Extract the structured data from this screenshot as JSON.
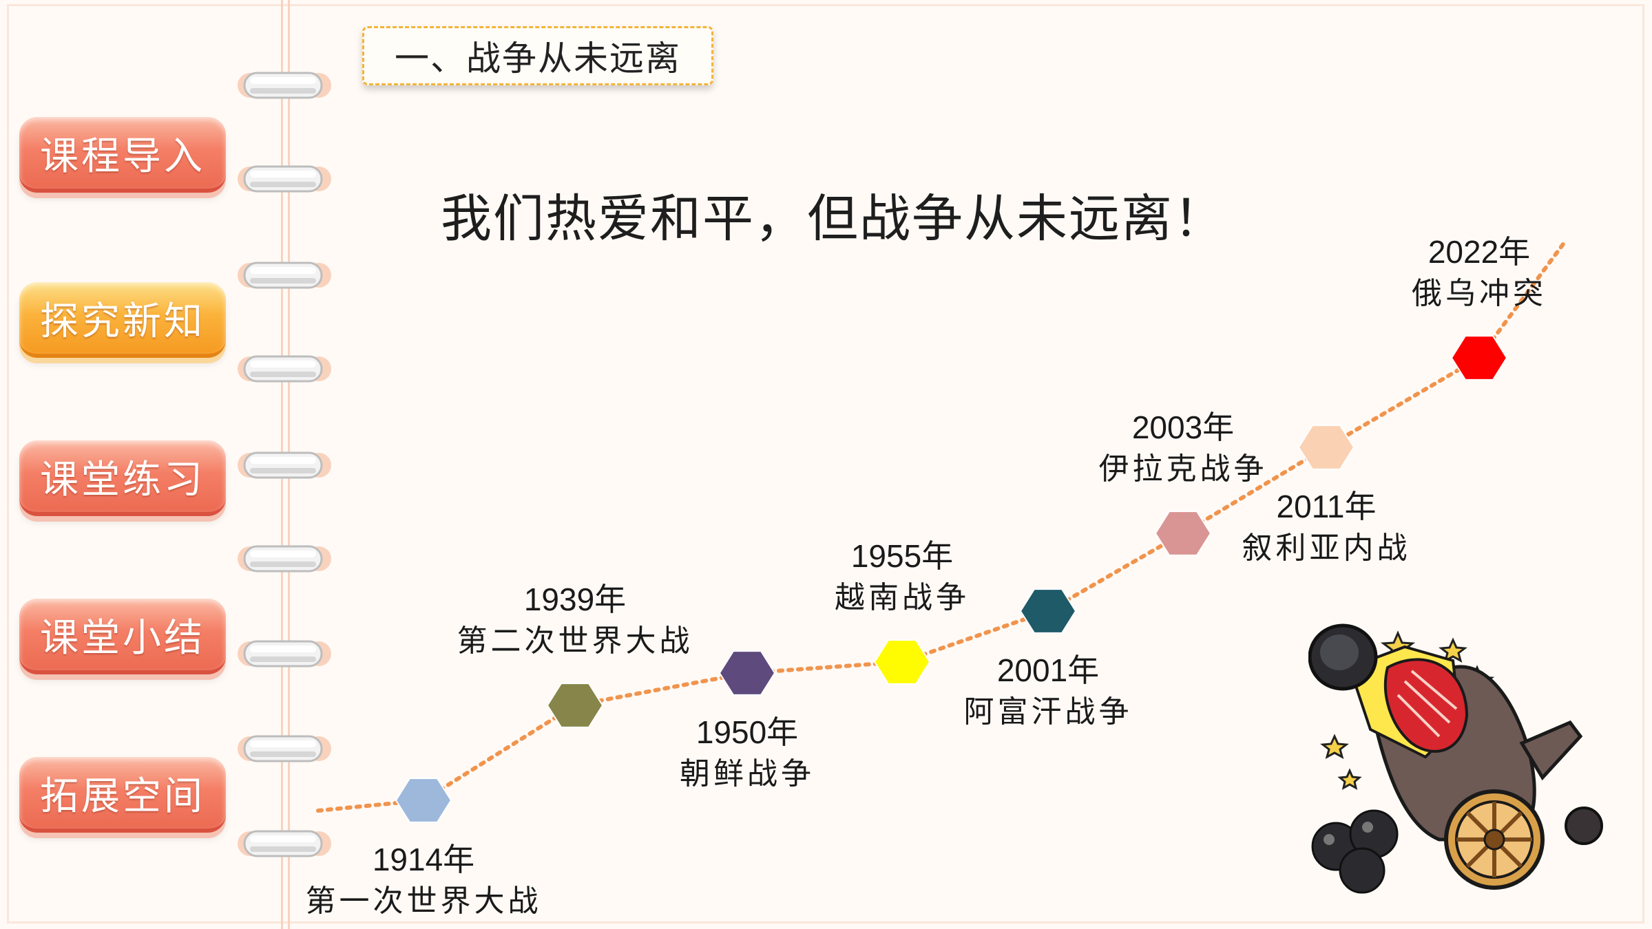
{
  "nav": {
    "items": [
      {
        "label": "课程导入",
        "style": "red"
      },
      {
        "label": "探究新知",
        "style": "orange"
      },
      {
        "label": "课堂练习",
        "style": "red"
      },
      {
        "label": "课堂小结",
        "style": "red"
      },
      {
        "label": "拓展空间",
        "style": "red"
      }
    ]
  },
  "section_title": "一、战争从未远离",
  "headline": "我们热爱和平，但战争从未远离！",
  "timeline": {
    "events": [
      {
        "year": "1914年",
        "name": "第一次世界大战",
        "color": "#9db8db"
      },
      {
        "year": "1939年",
        "name": "第二次世界大战",
        "color": "#878549"
      },
      {
        "year": "1950年",
        "name": "朝鲜战争",
        "color": "#5f4a7e"
      },
      {
        "year": "1955年",
        "name": "越南战争",
        "color": "#fffb00"
      },
      {
        "year": "2001年",
        "name": "阿富汗战争",
        "color": "#1e5a68"
      },
      {
        "year": "2003年",
        "name": "伊拉克战争",
        "color": "#d99593"
      },
      {
        "year": "2011年",
        "name": "叙利亚内战",
        "color": "#fbd1b3"
      },
      {
        "year": "2022年",
        "name": "俄乌冲突",
        "color": "#fe0000"
      }
    ],
    "line_color": "#f0944d"
  },
  "colors": {
    "nav_red": "#f47f66",
    "nav_orange": "#fbb33c",
    "title_border": "#f3b43a"
  },
  "illustration": "cannon-icon"
}
